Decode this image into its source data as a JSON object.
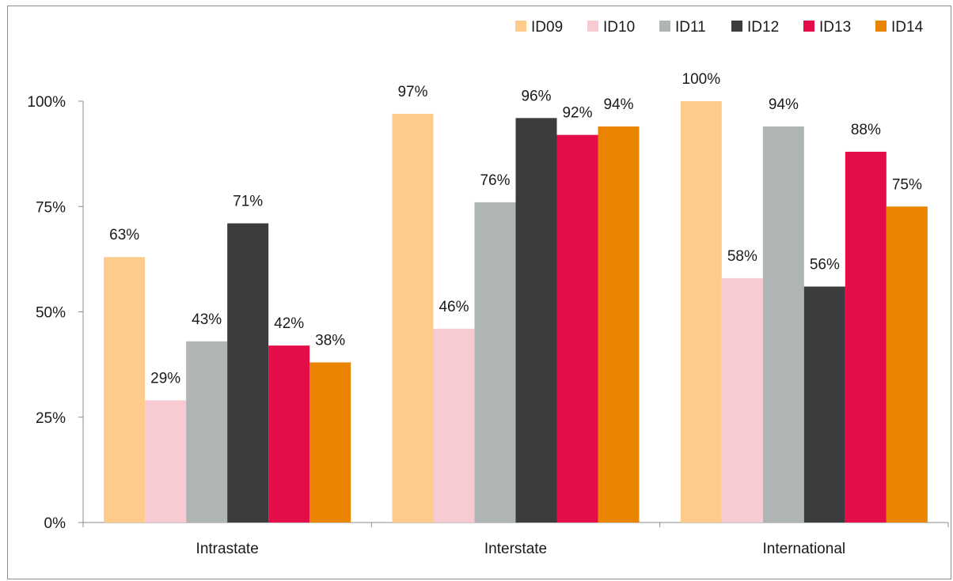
{
  "chart_data": {
    "type": "bar",
    "title": "",
    "xlabel": "",
    "ylabel": "",
    "categories": [
      "Intrastate",
      "Interstate",
      "International"
    ],
    "ylim": [
      0,
      100
    ],
    "yticks": [
      "0%",
      "25%",
      "50%",
      "75%",
      "100%"
    ],
    "ytick_values": [
      0,
      25,
      50,
      75,
      100
    ],
    "grid": false,
    "legend_position": "top-right",
    "series": [
      {
        "name": "ID09",
        "color": "#FDCB8B",
        "values": [
          63,
          97,
          100
        ],
        "labels": [
          "63%",
          "97%",
          "100%"
        ]
      },
      {
        "name": "ID10",
        "color": "#F8CAD2",
        "values": [
          29,
          46,
          58
        ],
        "labels": [
          "29%",
          "46%",
          "58%"
        ]
      },
      {
        "name": "ID11",
        "color": "#AFB5B4",
        "values": [
          43,
          76,
          94
        ],
        "labels": [
          "43%",
          "76%",
          "94%"
        ]
      },
      {
        "name": "ID12",
        "color": "#3A3C3D",
        "values": [
          71,
          96,
          56
        ],
        "labels": [
          "71%",
          "96%",
          "56%"
        ]
      },
      {
        "name": "ID13",
        "color": "#E50D47",
        "values": [
          42,
          92,
          88
        ],
        "labels": [
          "42%",
          "92%",
          "88%"
        ]
      },
      {
        "name": "ID14",
        "color": "#E98500",
        "values": [
          38,
          94,
          75
        ],
        "labels": [
          "38%",
          "94%",
          "75%"
        ]
      }
    ]
  }
}
